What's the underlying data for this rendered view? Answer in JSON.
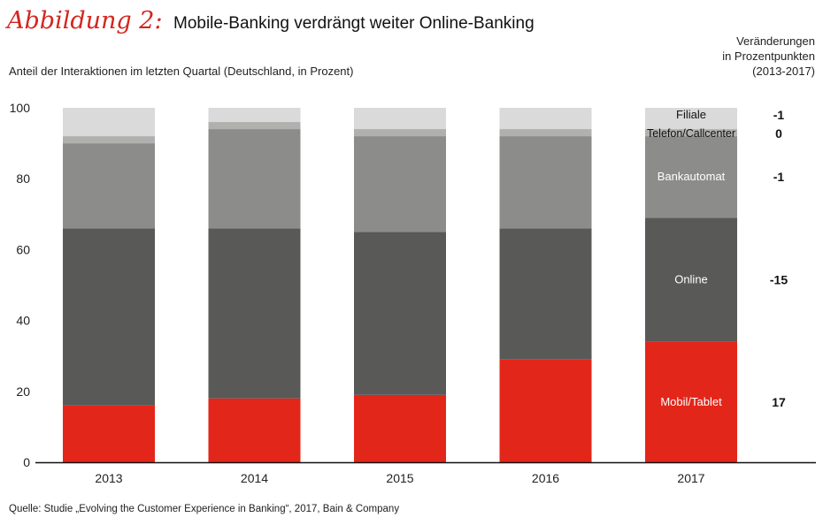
{
  "title": {
    "label": "Abbildung 2:",
    "text": "Mobile-Banking verdrängt weiter Online-Banking"
  },
  "subtitle": "Anteil der Interaktionen im letzten Quartal (Deutschland, in Prozent)",
  "change_header": [
    "Veränderungen",
    "in Prozentpunkten",
    "(2013-2017)"
  ],
  "source": "Quelle: Studie „Evolving the Customer Experience in Banking“, 2017, Bain & Company",
  "colors": {
    "Mobil/Tablet": "#e3261a",
    "Online": "#595957",
    "Bankautomat": "#8c8c8b",
    "Telefon/Callcenter": "#b0b0af",
    "Filiale": "#dadada"
  },
  "chart_data": {
    "type": "bar",
    "stacked": true,
    "categories": [
      "2013",
      "2014",
      "2015",
      "2016",
      "2017"
    ],
    "ylim": [
      0,
      100
    ],
    "yticks": [
      0,
      20,
      40,
      60,
      80,
      100
    ],
    "series": [
      {
        "name": "Mobil/Tablet",
        "values": [
          16,
          18,
          19,
          29,
          34
        ]
      },
      {
        "name": "Online",
        "values": [
          50,
          48,
          46,
          37,
          35
        ]
      },
      {
        "name": "Bankautomat",
        "values": [
          24,
          28,
          27,
          26,
          23
        ]
      },
      {
        "name": "Telefon/Callcenter",
        "values": [
          2,
          2,
          2,
          2,
          2
        ]
      },
      {
        "name": "Filiale",
        "values": [
          8,
          4,
          6,
          6,
          6
        ]
      }
    ],
    "changes": {
      "Filiale": "-1",
      "Telefon/Callcenter": "0",
      "Bankautomat": "-1",
      "Online": "-15",
      "Mobil/Tablet": "17"
    }
  }
}
